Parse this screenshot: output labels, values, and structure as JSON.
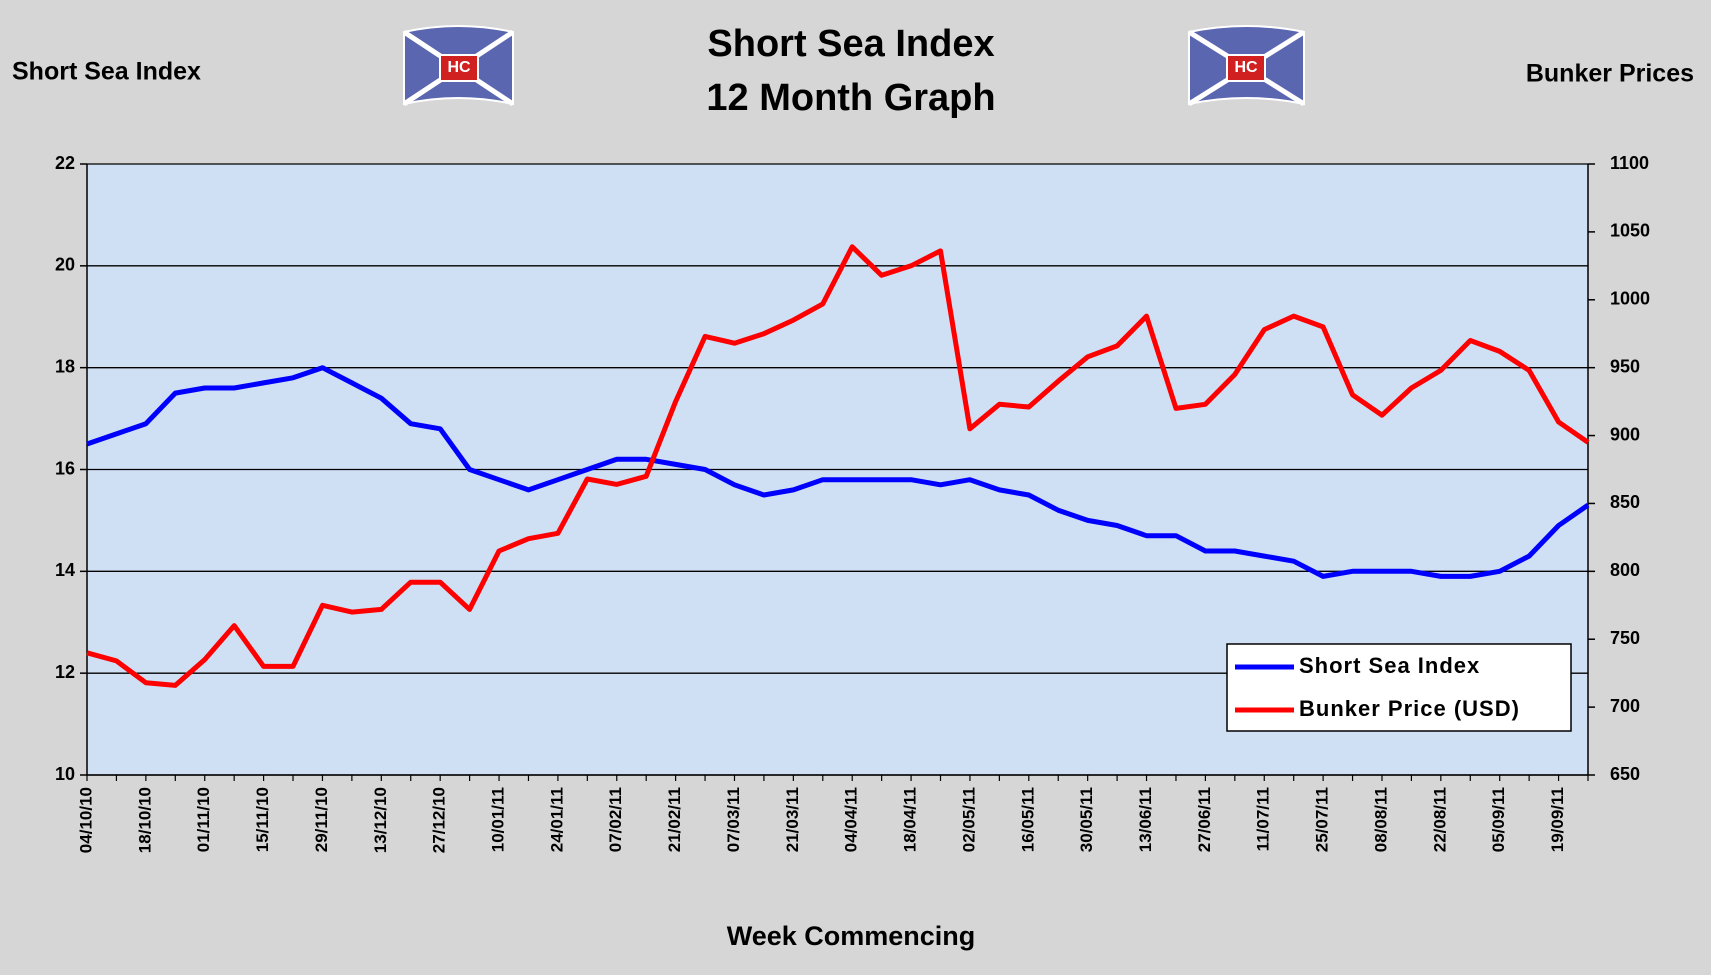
{
  "chart_data": {
    "type": "line",
    "title": "Short Sea Index",
    "subtitle": "12 Month Graph",
    "logo_text": "HC",
    "y_label": "Short Sea Index",
    "y2_label": "Bunker Prices",
    "x_label": "Week Commencing",
    "categories": [
      "04/10/10",
      null,
      "18/10/10",
      null,
      "01/11/10",
      null,
      "15/11/10",
      null,
      "29/11/10",
      null,
      "13/12/10",
      null,
      "27/12/10",
      null,
      "10/01/11",
      null,
      "24/01/11",
      null,
      "07/02/11",
      null,
      "21/02/11",
      null,
      "07/03/11",
      null,
      "21/03/11",
      null,
      "04/04/11",
      null,
      "18/04/11",
      null,
      "02/05/11",
      null,
      "16/05/11",
      null,
      "30/05/11",
      null,
      "13/06/11",
      null,
      "27/06/11",
      null,
      "11/07/11",
      null,
      "25/07/11",
      null,
      "08/08/11",
      null,
      "22/08/11",
      null,
      "05/09/11",
      null,
      "19/09/11",
      null
    ],
    "series": [
      {
        "name": "Short Sea Index",
        "color": "#0000ff",
        "values": [
          16.5,
          16.7,
          16.9,
          17.5,
          17.6,
          17.6,
          17.7,
          17.8,
          18.0,
          17.7,
          17.4,
          16.9,
          16.8,
          16.0,
          15.8,
          15.6,
          15.8,
          16.0,
          16.2,
          16.2,
          16.1,
          16.0,
          15.7,
          15.5,
          15.6,
          15.8,
          15.8,
          15.8,
          15.8,
          15.7,
          15.8,
          15.6,
          15.5,
          15.2,
          15.0,
          14.9,
          14.7,
          14.7,
          14.4,
          14.4,
          14.3,
          14.2,
          13.9,
          14.0,
          14.0,
          14.0,
          13.9,
          13.9,
          14.0,
          14.3,
          14.9,
          15.3
        ]
      },
      {
        "name": "Bunker Price (USD)",
        "color": "#ff0000",
        "axis": "y2",
        "values": [
          740,
          734,
          718,
          716,
          735,
          760,
          730,
          730,
          775,
          770,
          772,
          792,
          792,
          772,
          815,
          824,
          828,
          868,
          864,
          870,
          925,
          973,
          968,
          975,
          985,
          997,
          1039,
          1018,
          1025,
          1036,
          905,
          923,
          921,
          940,
          958,
          966,
          988,
          920,
          923,
          945,
          978,
          988,
          980,
          930,
          915,
          935,
          948,
          970,
          962,
          948,
          910,
          895
        ]
      }
    ],
    "ylim": [
      10,
      22
    ],
    "yticks": [
      10,
      12,
      14,
      16,
      18,
      20,
      22
    ],
    "y2lim": [
      650,
      1100
    ],
    "y2ticks": [
      650,
      700,
      750,
      800,
      850,
      900,
      950,
      1000,
      1050,
      1100
    ],
    "grid": true,
    "legend": "lower right",
    "plot_color": "#cfe0f5"
  }
}
